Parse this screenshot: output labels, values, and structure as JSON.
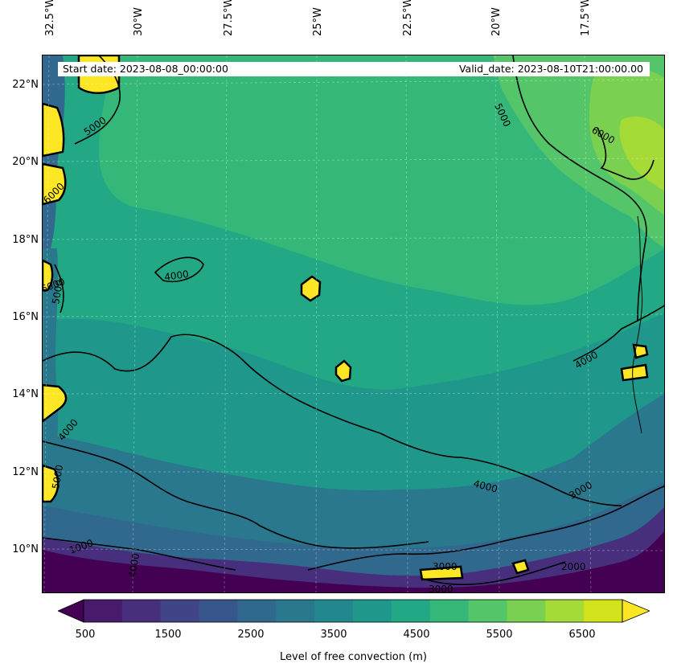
{
  "info": {
    "start_date": "Start date: 2023-08-08_00:00:00",
    "valid_date": "Valid_date: 2023-08-10T21:00:00.00"
  },
  "longitude_labels": [
    "32.5°W",
    "30°W",
    "27.5°W",
    "25°W",
    "22.5°W",
    "20°W",
    "17.5°W"
  ],
  "latitude_labels": [
    "22°N",
    "20°N",
    "18°N",
    "16°N",
    "14°N",
    "12°N",
    "10°N"
  ],
  "contour_labels": [
    "5000",
    "5000",
    "6000",
    "4000",
    "4000",
    "4000",
    "4000",
    "3000",
    "3000",
    "3000",
    "2000",
    "1000",
    "6000",
    "5000",
    "6000",
    "5000",
    "4000"
  ],
  "colorbar": {
    "label": "Level of free convection (m)",
    "ticks": [
      "500",
      "1500",
      "2500",
      "3500",
      "4500",
      "5500",
      "6500"
    ],
    "colors": [
      "#440154",
      "#481a6c",
      "#472f7d",
      "#414487",
      "#39568c",
      "#31688e",
      "#2a788e",
      "#23888e",
      "#1f988b",
      "#22a884",
      "#35b779",
      "#54c568",
      "#7ad151",
      "#a5db36",
      "#d2e21b",
      "#fde725"
    ]
  }
}
